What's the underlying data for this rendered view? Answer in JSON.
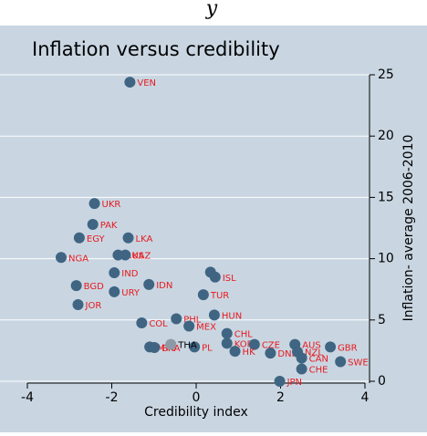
{
  "top_fragment": "y",
  "chart_data": {
    "type": "scatter",
    "title": "Inflation versus credibility",
    "x_label": "Credibility index",
    "y_label": "Inflation- average 2006-2010",
    "xlim": [
      -4,
      4
    ],
    "xticks": [
      -4,
      -2,
      0,
      2,
      4
    ],
    "ylim": [
      0,
      25
    ],
    "yticks": [
      0,
      5,
      10,
      15,
      20,
      25
    ],
    "grid": true,
    "color": "#3f6582",
    "label_color": "#e8191e",
    "points": [
      {
        "x": -1.57,
        "y": 24.4,
        "label": "VEN"
      },
      {
        "x": -2.41,
        "y": 14.5,
        "label": "UKR"
      },
      {
        "x": -2.45,
        "y": 12.8,
        "label": "PAK"
      },
      {
        "x": -2.77,
        "y": 11.7,
        "label": "EGY"
      },
      {
        "x": -1.61,
        "y": 11.7,
        "label": "LKA"
      },
      {
        "x": -3.2,
        "y": 10.1,
        "label": "NGA"
      },
      {
        "x": -1.85,
        "y": 10.3,
        "label": "RUS"
      },
      {
        "x": -1.68,
        "y": 10.3,
        "label": "KAZ"
      },
      {
        "x": -1.94,
        "y": 8.85,
        "label": "IND"
      },
      {
        "x": -2.84,
        "y": 7.8,
        "label": "BGD"
      },
      {
        "x": -1.94,
        "y": 7.3,
        "label": "URY"
      },
      {
        "x": -1.12,
        "y": 7.9,
        "label": "IDN"
      },
      {
        "x": -2.8,
        "y": 6.25,
        "label": "JOR"
      },
      {
        "x": 0.34,
        "y": 8.9,
        "label": null
      },
      {
        "x": 0.45,
        "y": 8.5,
        "label": "ISL"
      },
      {
        "x": 0.17,
        "y": 7.06,
        "label": "TUR"
      },
      {
        "x": -1.29,
        "y": 4.76,
        "label": "COL"
      },
      {
        "x": -0.47,
        "y": 5.1,
        "label": "PHL"
      },
      {
        "x": 0.43,
        "y": 5.4,
        "label": "HUN"
      },
      {
        "x": -0.17,
        "y": 4.5,
        "label": "MEX"
      },
      {
        "x": 0.73,
        "y": 3.9,
        "label": "CHL"
      },
      {
        "x": -1.1,
        "y": 2.8,
        "label": "MYS"
      },
      {
        "x": -0.99,
        "y": 2.75,
        "label": "BRA"
      },
      {
        "x": -0.04,
        "y": 2.8,
        "label": "PL"
      },
      {
        "x": 0.73,
        "y": 3.1,
        "label": "KOR"
      },
      {
        "x": 1.38,
        "y": 3.0,
        "label": "CZE"
      },
      {
        "x": 0.92,
        "y": 2.45,
        "label": "HK"
      },
      {
        "x": 1.76,
        "y": 2.3,
        "label": "DNK"
      },
      {
        "x": 2.34,
        "y": 3.0,
        "label": "AUS"
      },
      {
        "x": 2.4,
        "y": 2.4,
        "label": "NZL"
      },
      {
        "x": 3.18,
        "y": 2.8,
        "label": "GBR"
      },
      {
        "x": 2.5,
        "y": 1.9,
        "label": "CAN"
      },
      {
        "x": 2.5,
        "y": 1.0,
        "label": "CHE"
      },
      {
        "x": 3.42,
        "y": 1.6,
        "label": "SWE"
      },
      {
        "x": 1.98,
        "y": 0.0,
        "label": "JPN"
      }
    ],
    "highlight": {
      "x": -0.6,
      "y": 3.0,
      "label": "THA",
      "color": "#8d9aa6",
      "label_color": "#000000"
    }
  }
}
